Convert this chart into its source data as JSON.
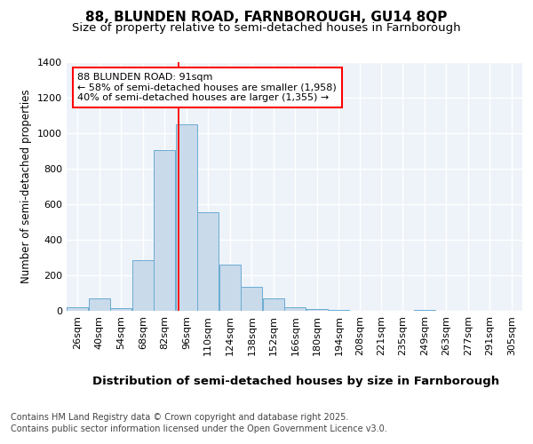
{
  "title1": "88, BLUNDEN ROAD, FARNBOROUGH, GU14 8QP",
  "title2": "Size of property relative to semi-detached houses in Farnborough",
  "xlabel": "Distribution of semi-detached houses by size in Farnborough",
  "ylabel": "Number of semi-detached properties",
  "categories": [
    "26sqm",
    "40sqm",
    "54sqm",
    "68sqm",
    "82sqm",
    "96sqm",
    "110sqm",
    "124sqm",
    "138sqm",
    "152sqm",
    "166sqm",
    "180sqm",
    "194sqm",
    "208sqm",
    "221sqm",
    "235sqm",
    "249sqm",
    "263sqm",
    "277sqm",
    "291sqm",
    "305sqm"
  ],
  "bin_edges": [
    19,
    33,
    47,
    61,
    75,
    89,
    103,
    117,
    131,
    145,
    159,
    173,
    187,
    201,
    214,
    228,
    242,
    256,
    270,
    284,
    298,
    312
  ],
  "values": [
    18,
    70,
    15,
    285,
    905,
    1050,
    555,
    260,
    135,
    68,
    20,
    10,
    5,
    0,
    0,
    0,
    5,
    0,
    0,
    0,
    0
  ],
  "bar_color": "#c9daea",
  "bar_edge_color": "#6aabd2",
  "red_line_x": 91,
  "annotation_line1": "88 BLUNDEN ROAD: 91sqm",
  "annotation_line2": "← 58% of semi-detached houses are smaller (1,958)",
  "annotation_line3": "40% of semi-detached houses are larger (1,355) →",
  "ylim": [
    0,
    1400
  ],
  "background_color": "#eef3fa",
  "footer1": "Contains HM Land Registry data © Crown copyright and database right 2025.",
  "footer2": "Contains public sector information licensed under the Open Government Licence v3.0.",
  "grid_color": "#ffffff",
  "title1_fontsize": 11,
  "title2_fontsize": 9.5,
  "xlabel_fontsize": 9.5,
  "ylabel_fontsize": 8.5,
  "tick_fontsize": 8,
  "annotation_fontsize": 8,
  "footer_fontsize": 7
}
